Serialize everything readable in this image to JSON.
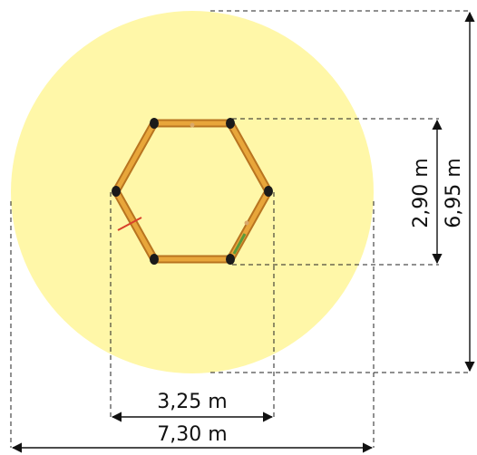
{
  "dimensions": {
    "inner_width": "3,25 m",
    "outer_width": "7,30 m",
    "inner_height": "2,90 m",
    "outer_height": "6,95 m"
  },
  "colors": {
    "safety_zone": "#fff7a8",
    "frame_wood": "#e8a63a",
    "frame_outline": "#b87420",
    "connector": "#1a1a1a",
    "dimension_line": "#111111",
    "marker_red": "#d9412b",
    "marker_green": "#5a9a3a"
  }
}
